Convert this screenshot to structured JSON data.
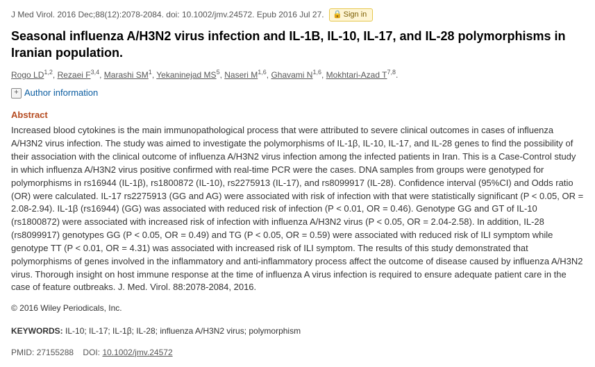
{
  "citation": {
    "journal": "J Med Virol.",
    "date_vol": "2016 Dec;88(12):2078-2084.",
    "doi_prefix": "doi:",
    "doi": "10.1002/jmv.24572.",
    "epub": "Epub 2016 Jul 27."
  },
  "signin": {
    "label": "Sign in"
  },
  "title": "Seasonal influenza A/H3N2 virus infection and IL-1B, IL-10, IL-17, and IL-28 polymorphisms in Iranian population.",
  "authors": [
    {
      "name": "Rogo LD",
      "affil": "1,2"
    },
    {
      "name": "Rezaei F",
      "affil": "3,4"
    },
    {
      "name": "Marashi SM",
      "affil": "1"
    },
    {
      "name": "Yekaninejad MS",
      "affil": "5"
    },
    {
      "name": "Naseri M",
      "affil": "1,6"
    },
    {
      "name": "Ghavami N",
      "affil": "1,6"
    },
    {
      "name": "Mokhtari-Azad T",
      "affil": "7,8"
    }
  ],
  "author_info_label": "Author information",
  "abstract": {
    "heading": "Abstract",
    "text": "Increased blood cytokines is the main immunopathological process that were attributed to severe clinical outcomes in cases of influenza A/H3N2 virus infection. The study was aimed to investigate the polymorphisms of IL-1β, IL-10, IL-17, and IL-28 genes to find the possibility of their association with the clinical outcome of influenza A/H3N2 virus infection among the infected patients in Iran. This is a Case-Control study in which influenza A/H3N2 virus positive confirmed with real-time PCR were the cases. DNA samples from groups were genotyped for polymorphisms in rs16944 (IL-1β), rs1800872 (IL-10), rs2275913 (IL-17), and rs8099917 (IL-28). Confidence interval (95%CI) and Odds ratio (OR) were calculated. IL-17 rs2275913 (GG and AG) were associated with risk of infection with that were statistically significant (P < 0.05, OR = 2.08-2.94). IL-1β (rs16944) (GG) was associated with reduced risk of infection (P < 0.01, OR = 0.46). Genotype GG and GT of IL-10 (rs1800872) were associated with increased risk of infection with influenza A/H3N2 virus (P < 0.05, OR = 2.04-2.58). In addition, IL-28 (rs8099917) genotypes GG (P < 0.05, OR = 0.49) and TG (P < 0.05, OR = 0.59) were associated with reduced risk of ILI symptom while genotype TT (P < 0.01, OR = 4.31) was associated with increased risk of ILI symptom. The results of this study demonstrated that polymorphisms of genes involved in the inflammatory and anti-inflammatory process affect the outcome of disease caused by influenza A/H3N2 virus. Thorough insight on host immune response at the time of influenza A virus infection is required to ensure adequate patient care in the case of feature outbreaks. J. Med. Virol. 88:2078-2084, 2016."
  },
  "copyright": "© 2016 Wiley Periodicals, Inc.",
  "keywords": {
    "label": "KEYWORDS:",
    "value": "IL-10; IL-17; IL-1β; IL-28; influenza A/H3N2 virus; polymorphism"
  },
  "ids": {
    "pmid_label": "PMID:",
    "pmid": "27155288",
    "doi_label": "DOI:",
    "doi": "10.1002/jmv.24572"
  }
}
